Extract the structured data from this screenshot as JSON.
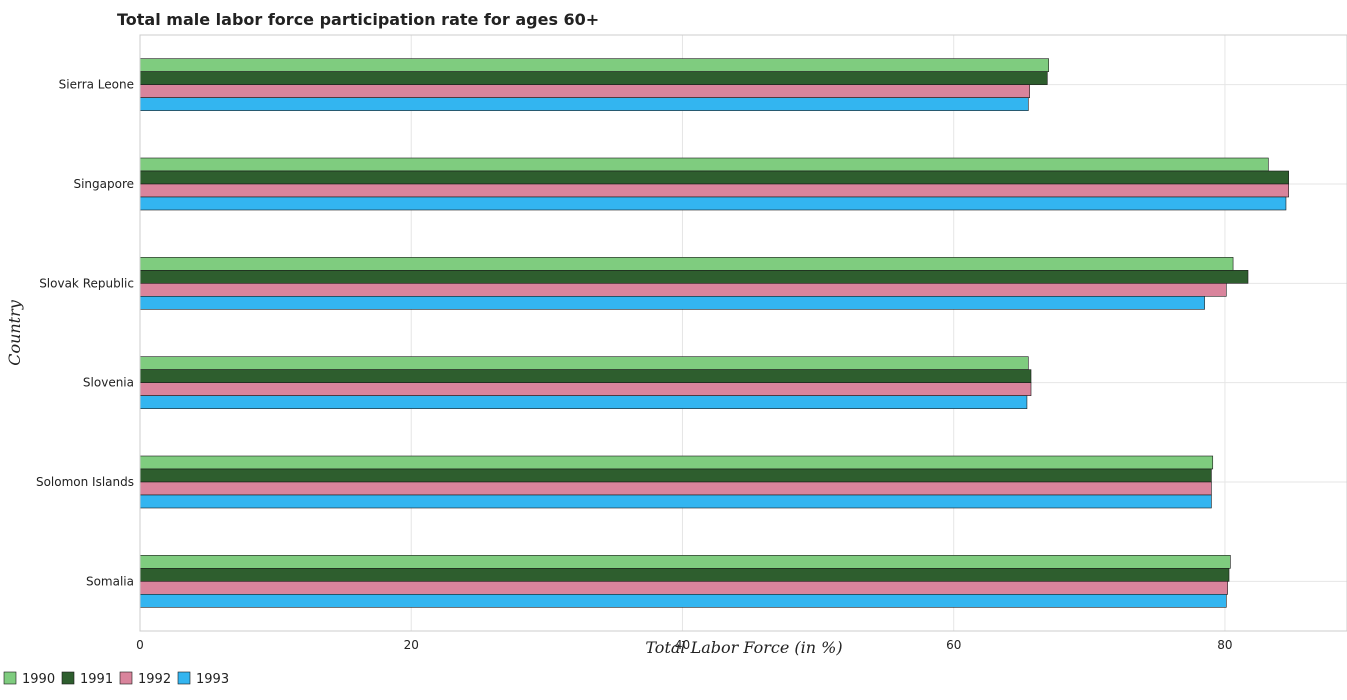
{
  "chart_data": {
    "type": "bar",
    "orientation": "horizontal",
    "title": "Total male labor force participation rate for ages 60+",
    "xlabel": "Total Labor Force (in %)",
    "ylabel": "Country",
    "xlim": [
      0,
      89
    ],
    "xticks": [
      0,
      20,
      40,
      60,
      80
    ],
    "grid": true,
    "legend_position": "bottom-left",
    "categories": [
      "Sierra Leone",
      "Singapore",
      "Slovak Republic",
      "Slovenia",
      "Solomon Islands",
      "Somalia"
    ],
    "series": [
      {
        "name": "1990",
        "color": "#7fcc7f",
        "values": [
          67.0,
          83.2,
          80.6,
          65.5,
          79.1,
          80.4
        ]
      },
      {
        "name": "1991",
        "color": "#2e5e2e",
        "values": [
          66.9,
          84.7,
          81.7,
          65.7,
          79.0,
          80.3
        ]
      },
      {
        "name": "1992",
        "color": "#d9849c",
        "values": [
          65.6,
          84.7,
          80.1,
          65.7,
          79.0,
          80.2
        ]
      },
      {
        "name": "1993",
        "color": "#33b5f0",
        "values": [
          65.5,
          84.5,
          78.5,
          65.4,
          79.0,
          80.1
        ]
      }
    ]
  }
}
